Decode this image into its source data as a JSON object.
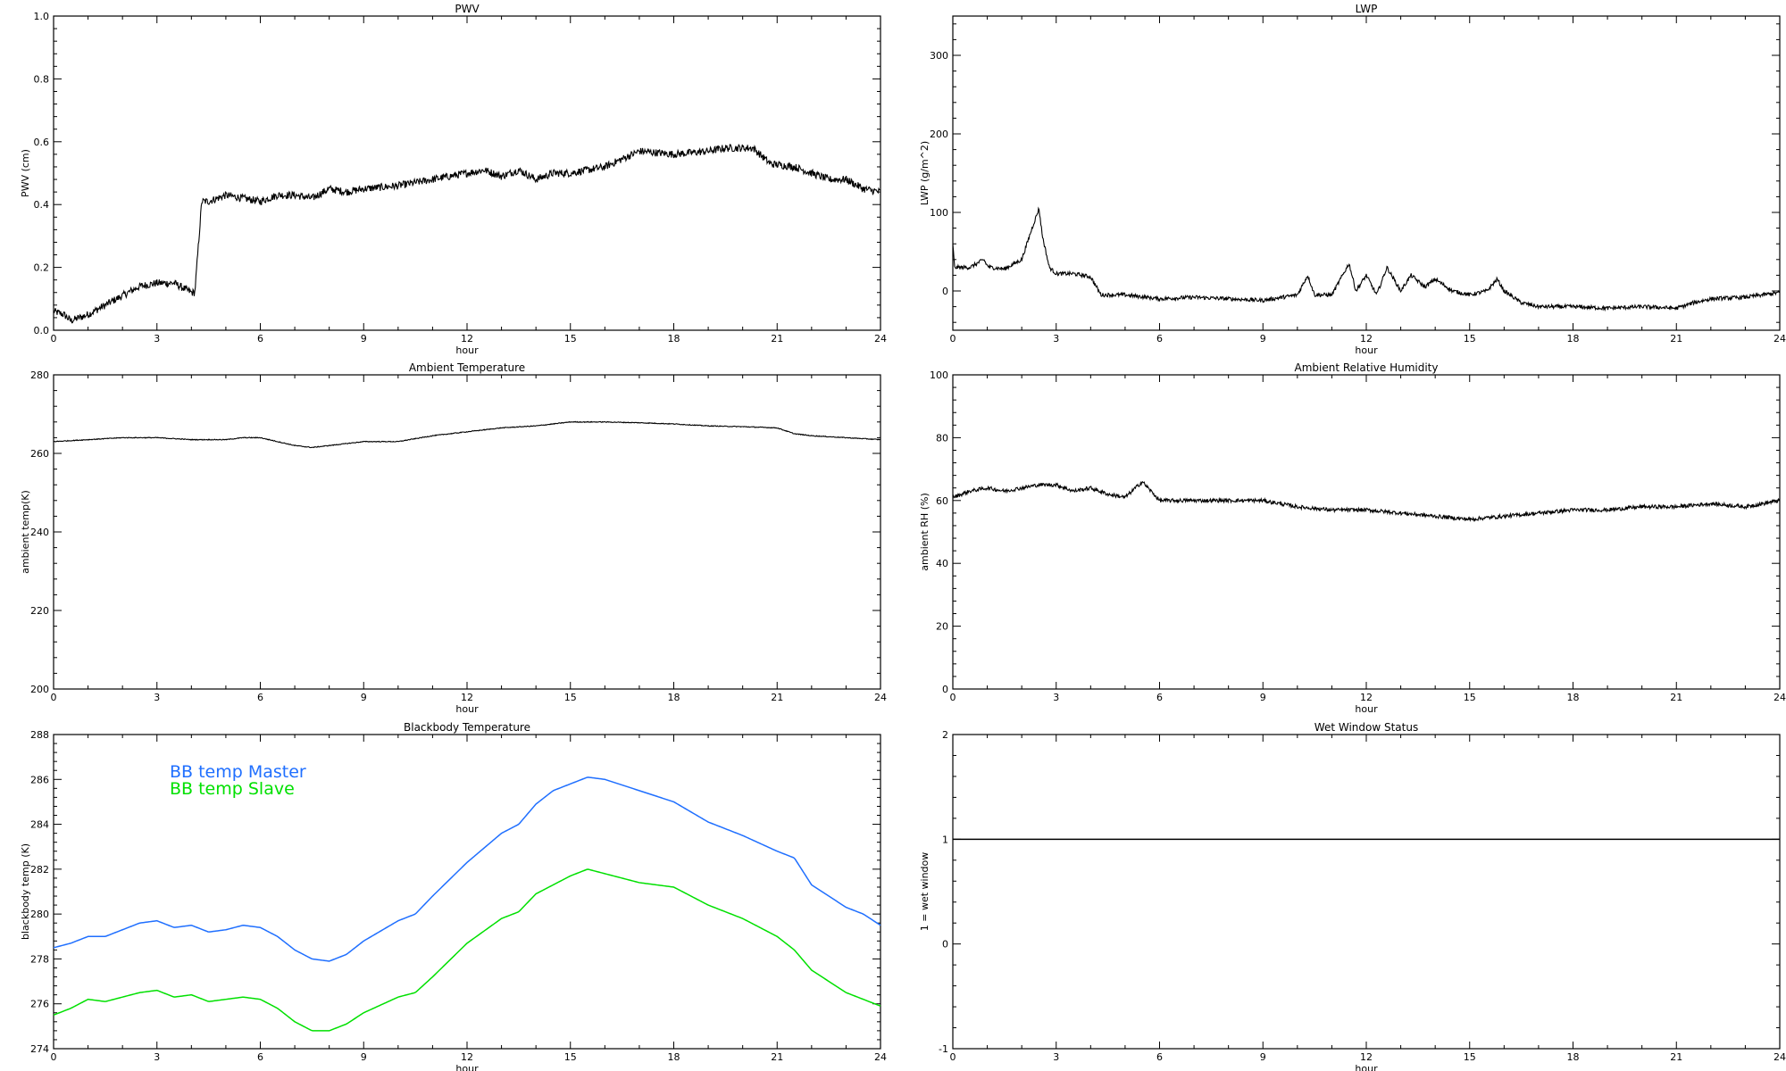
{
  "chart_data": [
    {
      "type": "line",
      "title": "PWV",
      "xlabel": "hour",
      "ylabel": "PWV (cm)",
      "xlim": [
        0,
        24
      ],
      "ylim": [
        0.0,
        1.0
      ],
      "xticks": [
        0,
        3,
        6,
        9,
        12,
        15,
        18,
        21,
        24
      ],
      "yticks": [
        "0.0",
        "0.2",
        "0.4",
        "0.6",
        "0.8",
        "1.0"
      ],
      "ytick_values": [
        0.0,
        0.2,
        0.4,
        0.6,
        0.8,
        1.0
      ],
      "series": [
        {
          "color": "#000000",
          "noise": 0.012,
          "x": [
            0,
            0.3,
            0.5,
            1.0,
            1.5,
            2.0,
            2.5,
            3.0,
            3.5,
            4.0,
            4.1,
            4.3,
            4.5,
            5.0,
            5.5,
            6.0,
            6.5,
            7.0,
            7.5,
            8.0,
            8.5,
            9.0,
            10.0,
            11.0,
            12.0,
            12.5,
            13.0,
            13.5,
            14.0,
            14.5,
            15.0,
            16.0,
            17.0,
            18.0,
            19.0,
            19.5,
            20.0,
            20.3,
            20.8,
            21.5,
            22.0,
            22.5,
            23.0,
            23.5,
            24.0
          ],
          "y": [
            0.06,
            0.05,
            0.03,
            0.05,
            0.08,
            0.11,
            0.14,
            0.15,
            0.15,
            0.12,
            0.12,
            0.41,
            0.41,
            0.43,
            0.42,
            0.41,
            0.43,
            0.43,
            0.42,
            0.45,
            0.44,
            0.45,
            0.46,
            0.48,
            0.5,
            0.51,
            0.49,
            0.51,
            0.48,
            0.5,
            0.5,
            0.52,
            0.57,
            0.56,
            0.57,
            0.58,
            0.58,
            0.58,
            0.53,
            0.52,
            0.5,
            0.48,
            0.48,
            0.45,
            0.44
          ]
        }
      ]
    },
    {
      "type": "line",
      "title": "LWP",
      "xlabel": "hour",
      "ylabel": "LWP (g/m^2)",
      "xlim": [
        0,
        24
      ],
      "ylim": [
        -50,
        350
      ],
      "xticks": [
        0,
        3,
        6,
        9,
        12,
        15,
        18,
        21,
        24
      ],
      "yticks": [
        "0",
        "100",
        "200",
        "300"
      ],
      "ytick_values": [
        0,
        100,
        200,
        300
      ],
      "series": [
        {
          "color": "#000000",
          "noise": 2.5,
          "x": [
            0,
            0.05,
            0.2,
            0.5,
            0.9,
            1.0,
            1.1,
            1.5,
            2.0,
            2.3,
            2.5,
            2.6,
            2.8,
            3.0,
            3.5,
            4.0,
            4.3,
            5.0,
            6.0,
            7.0,
            8.0,
            9.0,
            10.0,
            10.3,
            10.5,
            11.0,
            11.5,
            11.7,
            12.0,
            12.3,
            12.6,
            13.0,
            13.3,
            13.7,
            14.0,
            14.5,
            15.0,
            15.5,
            15.8,
            16.0,
            16.5,
            17.0,
            18.0,
            19.0,
            20.0,
            21.0,
            21.5,
            22.0,
            23.0,
            24.0
          ],
          "y": [
            60,
            30,
            30,
            30,
            40,
            32,
            30,
            28,
            40,
            80,
            105,
            70,
            30,
            22,
            22,
            18,
            -5,
            -5,
            -10,
            -8,
            -10,
            -12,
            -5,
            20,
            -5,
            -5,
            35,
            0,
            20,
            -5,
            30,
            0,
            20,
            5,
            15,
            0,
            -5,
            0,
            15,
            0,
            -15,
            -20,
            -20,
            -22,
            -20,
            -22,
            -15,
            -10,
            -8,
            -2
          ]
        }
      ]
    },
    {
      "type": "line",
      "title": "Ambient Temperature",
      "xlabel": "hour",
      "ylabel": "ambient temp(K)",
      "xlim": [
        0,
        24
      ],
      "ylim": [
        200,
        280
      ],
      "xticks": [
        0,
        3,
        6,
        9,
        12,
        15,
        18,
        21,
        24
      ],
      "yticks": [
        "200",
        "220",
        "240",
        "260",
        "280"
      ],
      "ytick_values": [
        200,
        220,
        240,
        260,
        280
      ],
      "series": [
        {
          "color": "#000000",
          "noise": 0.1,
          "x": [
            0,
            1,
            2,
            3,
            4,
            5,
            5.5,
            6,
            7,
            7.5,
            8,
            9,
            10,
            11,
            12,
            13,
            14,
            15,
            15.5,
            16,
            17,
            18,
            19,
            20,
            21,
            21.5,
            22,
            23,
            24
          ],
          "y": [
            263,
            263.5,
            264,
            264,
            263.5,
            263.5,
            264,
            264,
            262,
            261.5,
            262,
            263,
            263,
            264.5,
            265.5,
            266.5,
            267,
            268,
            268,
            268,
            267.8,
            267.5,
            267,
            266.8,
            266.5,
            265,
            264.5,
            264,
            263.5
          ]
        }
      ]
    },
    {
      "type": "line",
      "title": "Ambient Relative Humidity",
      "xlabel": "hour",
      "ylabel": "ambient RH (%)",
      "xlim": [
        0,
        24
      ],
      "ylim": [
        0,
        100
      ],
      "xticks": [
        0,
        3,
        6,
        9,
        12,
        15,
        18,
        21,
        24
      ],
      "yticks": [
        "0",
        "20",
        "40",
        "60",
        "80",
        "100"
      ],
      "ytick_values": [
        0,
        20,
        40,
        60,
        80,
        100
      ],
      "series": [
        {
          "color": "#000000",
          "noise": 0.6,
          "x": [
            0,
            0.5,
            1.0,
            1.5,
            2.0,
            2.5,
            3.0,
            3.5,
            4.0,
            4.5,
            5.0,
            5.5,
            6.0,
            7.0,
            8.0,
            9.0,
            10.0,
            11.0,
            12.0,
            13.0,
            14.0,
            15.0,
            16.0,
            17.0,
            18.0,
            19.0,
            20.0,
            21.0,
            22.0,
            23.0,
            24.0
          ],
          "y": [
            61,
            63,
            64,
            63,
            64,
            65,
            65,
            63,
            64,
            62,
            61,
            66,
            60,
            60,
            60,
            60,
            58,
            57,
            57,
            56,
            55,
            54,
            55,
            56,
            57,
            57,
            58,
            58,
            59,
            58,
            60
          ]
        }
      ]
    },
    {
      "type": "line",
      "title": "Blackbody Temperature",
      "xlabel": "hour",
      "ylabel": "blackbody temp (K)",
      "xlim": [
        0,
        24
      ],
      "ylim": [
        274,
        288
      ],
      "xticks": [
        0,
        3,
        6,
        9,
        12,
        15,
        18,
        21,
        24
      ],
      "yticks": [
        "274",
        "276",
        "278",
        "280",
        "282",
        "284",
        "286",
        "288"
      ],
      "ytick_values": [
        274,
        276,
        278,
        280,
        282,
        284,
        286,
        288
      ],
      "legend": {
        "position": "upper-left"
      },
      "series": [
        {
          "name": "BB temp Master",
          "color": "#1f6fff",
          "noise": 0,
          "x": [
            0,
            0.5,
            1.0,
            1.5,
            2.0,
            2.5,
            3.0,
            3.5,
            4.0,
            4.5,
            5.0,
            5.5,
            6.0,
            6.5,
            7.0,
            7.5,
            8.0,
            8.5,
            9.0,
            10.0,
            10.5,
            11.0,
            12.0,
            13.0,
            13.5,
            14.0,
            14.5,
            15.0,
            15.5,
            16.0,
            17.0,
            18.0,
            19.0,
            20.0,
            21.0,
            21.5,
            22.0,
            22.5,
            23.0,
            23.5,
            24.0
          ],
          "y": [
            278.5,
            278.7,
            279.0,
            279.0,
            279.3,
            279.6,
            279.7,
            279.4,
            279.5,
            279.2,
            279.3,
            279.5,
            279.4,
            279.0,
            278.4,
            278.0,
            277.9,
            278.2,
            278.8,
            279.7,
            280.0,
            280.8,
            282.3,
            283.6,
            284.0,
            284.9,
            285.5,
            285.8,
            286.1,
            286.0,
            285.5,
            285.0,
            284.1,
            283.5,
            282.8,
            282.5,
            281.3,
            280.8,
            280.3,
            280.0,
            279.5
          ]
        },
        {
          "name": "BB temp Slave",
          "color": "#00e000",
          "noise": 0,
          "x": [
            0,
            0.5,
            1.0,
            1.5,
            2.0,
            2.5,
            3.0,
            3.5,
            4.0,
            4.5,
            5.0,
            5.5,
            6.0,
            6.5,
            7.0,
            7.5,
            8.0,
            8.5,
            9.0,
            10.0,
            10.5,
            11.0,
            12.0,
            13.0,
            13.5,
            14.0,
            14.5,
            15.0,
            15.5,
            16.0,
            17.0,
            18.0,
            19.0,
            20.0,
            21.0,
            21.5,
            22.0,
            22.5,
            23.0,
            23.5,
            24.0
          ],
          "y": [
            275.5,
            275.8,
            276.2,
            276.1,
            276.3,
            276.5,
            276.6,
            276.3,
            276.4,
            276.1,
            276.2,
            276.3,
            276.2,
            275.8,
            275.2,
            274.8,
            274.8,
            275.1,
            275.6,
            276.3,
            276.5,
            277.2,
            278.7,
            279.8,
            280.1,
            280.9,
            281.3,
            281.7,
            282.0,
            281.8,
            281.4,
            281.2,
            280.4,
            279.8,
            279.0,
            278.4,
            277.5,
            277.0,
            276.5,
            276.2,
            275.9
          ]
        }
      ]
    },
    {
      "type": "line",
      "title": "Wet Window Status",
      "xlabel": "hour",
      "ylabel": "1 = wet window",
      "xlim": [
        0,
        24
      ],
      "ylim": [
        -1,
        2
      ],
      "xticks": [
        0,
        3,
        6,
        9,
        12,
        15,
        18,
        21,
        24
      ],
      "yticks": [
        "-1",
        "0",
        "1",
        "2"
      ],
      "ytick_values": [
        -1,
        0,
        1,
        2
      ],
      "series": [
        {
          "color": "#000000",
          "noise": 0,
          "x": [
            0,
            24
          ],
          "y": [
            1,
            1
          ]
        }
      ]
    }
  ]
}
